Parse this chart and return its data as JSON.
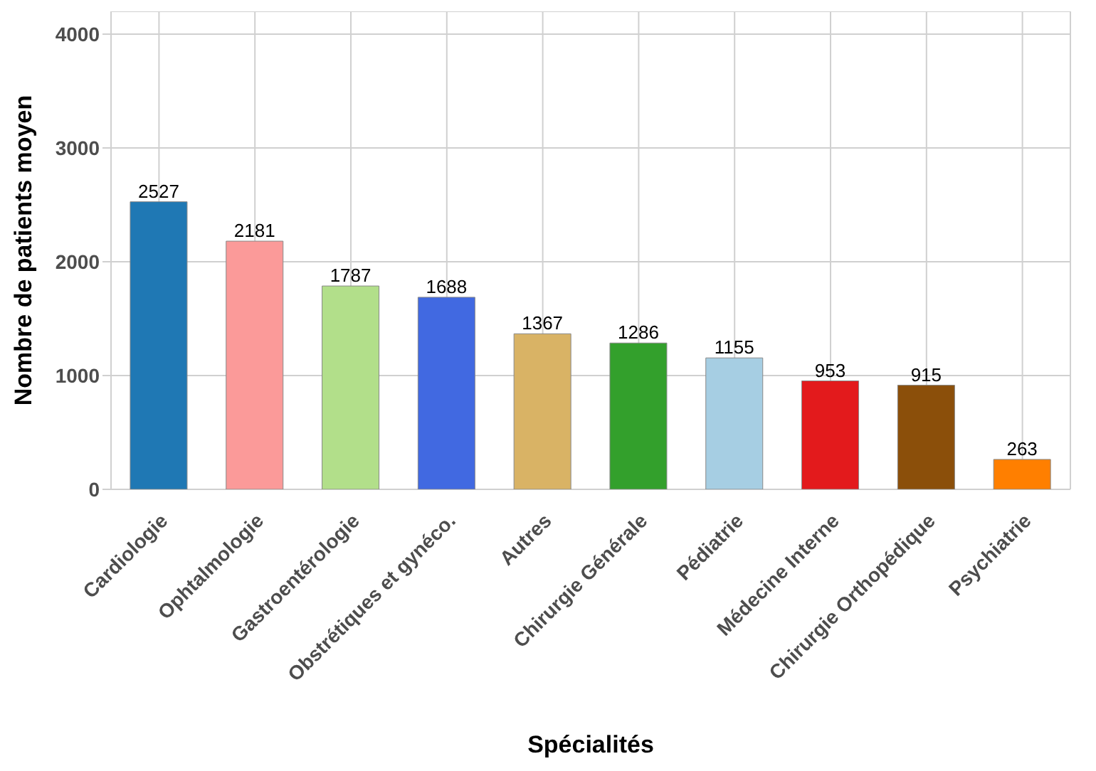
{
  "chart_data": {
    "type": "bar",
    "xlabel": "Spécialités",
    "ylabel": "Nombre de patients moyen",
    "categories": [
      "Cardiologie",
      "Ophtalmologie",
      "Gastroentérologie",
      "Obstrétiques et gynéco.",
      "Autres",
      "Chirurgie Générale",
      "Pédiatrie",
      "Médecine Interne",
      "Chirurgie Orthopédique",
      "Psychiatrie"
    ],
    "values": [
      2527,
      2181,
      1787,
      1688,
      1367,
      1286,
      1155,
      953,
      915,
      263
    ],
    "colors": [
      "#1f78b4",
      "#fb9a99",
      "#b2df8a",
      "#4169e1",
      "#d9b365",
      "#33a02c",
      "#a6cee3",
      "#e31a1c",
      "#8b4f0a",
      "#ff7f00"
    ],
    "ylim": [
      0,
      4200
    ],
    "yticks": [
      0,
      1000,
      2000,
      3000,
      4000
    ],
    "grid": true,
    "data_labels": true
  }
}
